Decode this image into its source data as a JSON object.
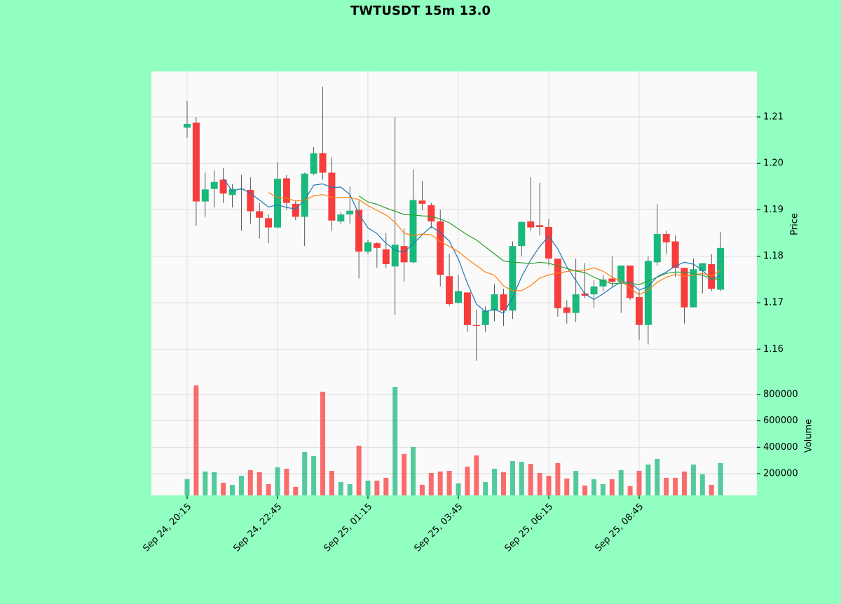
{
  "chart_data": {
    "type": "candlestick",
    "title": "TWTUSDT 15m 13.0",
    "ylabel": "Price",
    "up_color": "#19b97c",
    "down_color": "#f83c3c",
    "wick_color": "#333333",
    "grid": true,
    "categories": [
      "Sep 24, 20:15",
      null,
      null,
      null,
      null,
      null,
      null,
      null,
      null,
      null,
      "Sep 24, 22:45",
      null,
      null,
      null,
      null,
      null,
      null,
      null,
      null,
      null,
      "Sep 25, 01:15",
      null,
      null,
      null,
      null,
      null,
      null,
      null,
      null,
      null,
      "Sep 25, 03:45",
      null,
      null,
      null,
      null,
      null,
      null,
      null,
      null,
      null,
      "Sep 25, 06:15",
      null,
      null,
      null,
      null,
      null,
      null,
      null,
      null,
      null,
      "Sep 25, 08:45",
      null,
      null,
      null,
      null,
      null,
      null,
      null,
      null,
      null
    ],
    "open": [
      1.2077,
      1.2088,
      1.1918,
      1.1945,
      1.1965,
      1.1932,
      1.1944,
      1.1943,
      1.1897,
      1.1882,
      1.1862,
      1.1968,
      1.1913,
      1.1885,
      1.1978,
      1.2022,
      1.198,
      1.1875,
      1.189,
      1.19,
      1.181,
      1.1828,
      1.1815,
      1.1778,
      1.1822,
      1.1787,
      1.192,
      1.191,
      1.1875,
      1.1757,
      1.17,
      1.1722,
      1.1652,
      1.1652,
      1.1683,
      1.1718,
      1.1683,
      1.1822,
      1.1875,
      1.1867,
      1.1863,
      1.1795,
      1.169,
      1.1678,
      1.172,
      1.1718,
      1.1735,
      1.1752,
      1.1745,
      1.178,
      1.1712,
      1.1652,
      1.1787,
      1.1848,
      1.1832,
      1.1775,
      1.169,
      1.1768,
      1.1783,
      1.1728
    ],
    "high": [
      1.2135,
      1.21,
      1.198,
      1.1985,
      1.199,
      1.1955,
      1.1975,
      1.197,
      1.1915,
      1.189,
      1.2003,
      1.1975,
      1.192,
      1.198,
      1.2035,
      1.2165,
      1.2013,
      1.1895,
      1.195,
      1.192,
      1.1835,
      1.183,
      1.185,
      1.21,
      1.186,
      1.1987,
      1.1962,
      1.1915,
      1.19,
      1.1805,
      1.176,
      1.1722,
      1.1685,
      1.1692,
      1.174,
      1.173,
      1.1832,
      1.1875,
      1.197,
      1.1958,
      1.188,
      1.1795,
      1.1705,
      1.1795,
      1.1785,
      1.1748,
      1.176,
      1.18,
      1.178,
      1.178,
      1.1725,
      1.18,
      1.1912,
      1.1855,
      1.1845,
      1.1775,
      1.1795,
      1.1785,
      1.1805,
      1.1852
    ],
    "low": [
      1.2055,
      1.1866,
      1.1885,
      1.1905,
      1.1915,
      1.1905,
      1.1855,
      1.187,
      1.1838,
      1.1828,
      1.186,
      1.19,
      1.1878,
      1.1822,
      1.1975,
      1.1965,
      1.1855,
      1.187,
      1.187,
      1.1752,
      1.1805,
      1.1775,
      1.1775,
      1.1673,
      1.1745,
      1.1785,
      1.19,
      1.186,
      1.1735,
      1.1693,
      1.1698,
      1.1637,
      1.1575,
      1.1637,
      1.166,
      1.165,
      1.1665,
      1.18,
      1.1855,
      1.1845,
      1.178,
      1.167,
      1.1655,
      1.1658,
      1.171,
      1.1688,
      1.1725,
      1.1735,
      1.1678,
      1.1705,
      1.162,
      1.161,
      1.178,
      1.1805,
      1.1755,
      1.1655,
      1.169,
      1.172,
      1.1725,
      1.1725
    ],
    "close": [
      1.2085,
      1.1918,
      1.1944,
      1.196,
      1.1935,
      1.1945,
      1.1945,
      1.1897,
      1.1883,
      1.1862,
      1.1967,
      1.1915,
      1.1885,
      1.1978,
      1.2022,
      1.198,
      1.1877,
      1.189,
      1.1898,
      1.181,
      1.183,
      1.1818,
      1.1783,
      1.1825,
      1.1787,
      1.1921,
      1.1913,
      1.1875,
      1.176,
      1.1697,
      1.1725,
      1.1652,
      1.165,
      1.1683,
      1.1718,
      1.1683,
      1.1822,
      1.1874,
      1.1862,
      1.1863,
      1.1795,
      1.1688,
      1.1678,
      1.1718,
      1.1715,
      1.1735,
      1.175,
      1.1745,
      1.178,
      1.171,
      1.1652,
      1.179,
      1.1848,
      1.183,
      1.1775,
      1.169,
      1.1772,
      1.1785,
      1.173,
      1.1818
    ],
    "ylim": [
      1.1537,
      1.2198
    ],
    "yticks": [
      1.16,
      1.17,
      1.18,
      1.19,
      {
        "value": 1.2,
        "label": "1.20"
      },
      1.21
    ],
    "moving_averages": [
      {
        "color": "#1f77b4",
        "values": [
          null,
          null,
          null,
          null,
          1.1968,
          1.194,
          1.1946,
          1.1936,
          1.1921,
          1.1906,
          1.1911,
          1.1905,
          1.1902,
          1.1921,
          1.1953,
          1.1956,
          1.1948,
          1.1949,
          1.1933,
          1.1891,
          1.1861,
          1.1849,
          1.1828,
          1.1813,
          1.1809,
          1.1827,
          1.1846,
          1.1864,
          1.1851,
          1.1833,
          1.1794,
          1.1742,
          1.1697,
          1.1681,
          1.1686,
          1.1677,
          1.1711,
          1.1756,
          1.1792,
          1.1821,
          1.1843,
          1.1816,
          1.1777,
          1.1748,
          1.1719,
          1.1707,
          1.1719,
          1.1733,
          1.1745,
          1.1744,
          1.1727,
          1.1735,
          1.1756,
          1.1766,
          1.1779,
          1.1787,
          1.1783,
          1.177,
          1.175,
          1.1759
        ]
      },
      {
        "color": "#ff7f0e",
        "values": [
          null,
          null,
          null,
          null,
          null,
          null,
          null,
          null,
          null,
          1.1937,
          1.1926,
          1.1925,
          1.1919,
          1.1921,
          1.193,
          1.1933,
          1.1927,
          1.1926,
          1.1927,
          1.1922,
          1.1909,
          1.1899,
          1.1889,
          1.1873,
          1.185,
          1.1844,
          1.1848,
          1.1846,
          1.1832,
          1.1821,
          1.181,
          1.1794,
          1.178,
          1.1766,
          1.1759,
          1.1736,
          1.1726,
          1.1726,
          1.1737,
          1.1753,
          1.176,
          1.1764,
          1.1767,
          1.177,
          1.177,
          1.1775,
          1.1768,
          1.1755,
          1.1747,
          1.1731,
          1.1717,
          1.1727,
          1.1744,
          1.1755,
          1.1761,
          1.1757,
          1.1759,
          1.1763,
          1.1758,
          1.1769
        ]
      },
      {
        "color": "#2ca02c",
        "values": [
          null,
          null,
          null,
          null,
          null,
          null,
          null,
          null,
          null,
          null,
          null,
          null,
          null,
          null,
          null,
          null,
          null,
          null,
          null,
          1.193,
          1.1917,
          1.1912,
          1.1904,
          1.1897,
          1.189,
          1.1889,
          1.1887,
          1.1886,
          1.188,
          1.1872,
          1.1859,
          1.1846,
          1.1835,
          1.182,
          1.1805,
          1.179,
          1.1787,
          1.1786,
          1.1784,
          1.1787,
          1.1785,
          1.1779,
          1.1774,
          1.1768,
          1.1765,
          1.1755,
          1.1747,
          1.1741,
          1.1742,
          1.1742,
          1.1739,
          1.1746,
          1.1755,
          1.1763,
          1.1766,
          1.1766,
          1.1763,
          1.1759,
          1.1752,
          1.175
        ]
      }
    ],
    "volume": {
      "ylabel": "Volume",
      "values": [
        158000,
        868000,
        216000,
        211000,
        131000,
        115000,
        184000,
        227000,
        211000,
        120000,
        248000,
        237000,
        100000,
        364000,
        333000,
        821000,
        221000,
        136000,
        120000,
        412000,
        147000,
        147000,
        168000,
        858000,
        349000,
        402000,
        115000,
        205000,
        216000,
        221000,
        126000,
        253000,
        338000,
        136000,
        237000,
        211000,
        295000,
        290000,
        274000,
        205000,
        184000,
        280000,
        163000,
        221000,
        110000,
        158000,
        120000,
        158000,
        227000,
        105000,
        221000,
        269000,
        311000,
        168000,
        168000,
        216000,
        269000,
        195000,
        115000,
        280000
      ],
      "ylim": [
        35000,
        922000
      ],
      "yticks": [
        200000,
        400000,
        600000,
        800000
      ]
    }
  }
}
